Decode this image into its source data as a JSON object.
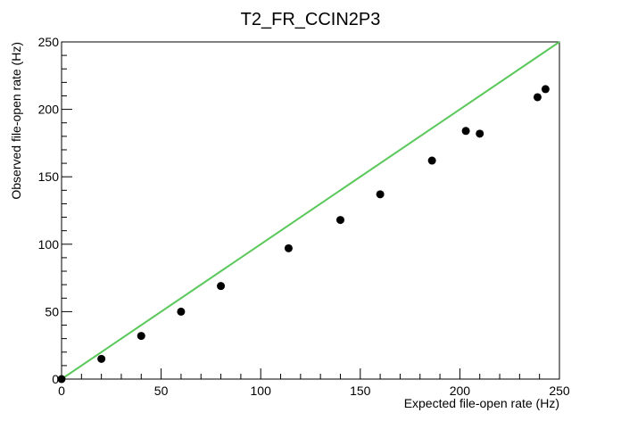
{
  "chart_data": {
    "type": "scatter",
    "title": "T2_FR_CCIN2P3",
    "xlabel": "Expected file-open rate (Hz)",
    "ylabel": "Observed file-open rate (Hz)",
    "xlim": [
      0,
      250
    ],
    "ylim": [
      0,
      250
    ],
    "x_ticks": [
      "0",
      "50",
      "100",
      "150",
      "200",
      "250"
    ],
    "y_ticks": [
      "0",
      "50",
      "100",
      "150",
      "200",
      "250"
    ],
    "grid": false,
    "series": [
      {
        "marker_color": "#000000",
        "points": [
          {
            "x": 0,
            "y": 0
          },
          {
            "x": 20,
            "y": 15
          },
          {
            "x": 40,
            "y": 32
          },
          {
            "x": 60,
            "y": 50
          },
          {
            "x": 80,
            "y": 69
          },
          {
            "x": 114,
            "y": 97
          },
          {
            "x": 140,
            "y": 118
          },
          {
            "x": 160,
            "y": 137
          },
          {
            "x": 186,
            "y": 162
          },
          {
            "x": 203,
            "y": 184
          },
          {
            "x": 210,
            "y": 182
          },
          {
            "x": 239,
            "y": 209
          },
          {
            "x": 243,
            "y": 215
          }
        ]
      }
    ],
    "reference_line": {
      "from": [
        0,
        0
      ],
      "to": [
        250,
        250
      ],
      "color": "#5ac85a"
    }
  }
}
